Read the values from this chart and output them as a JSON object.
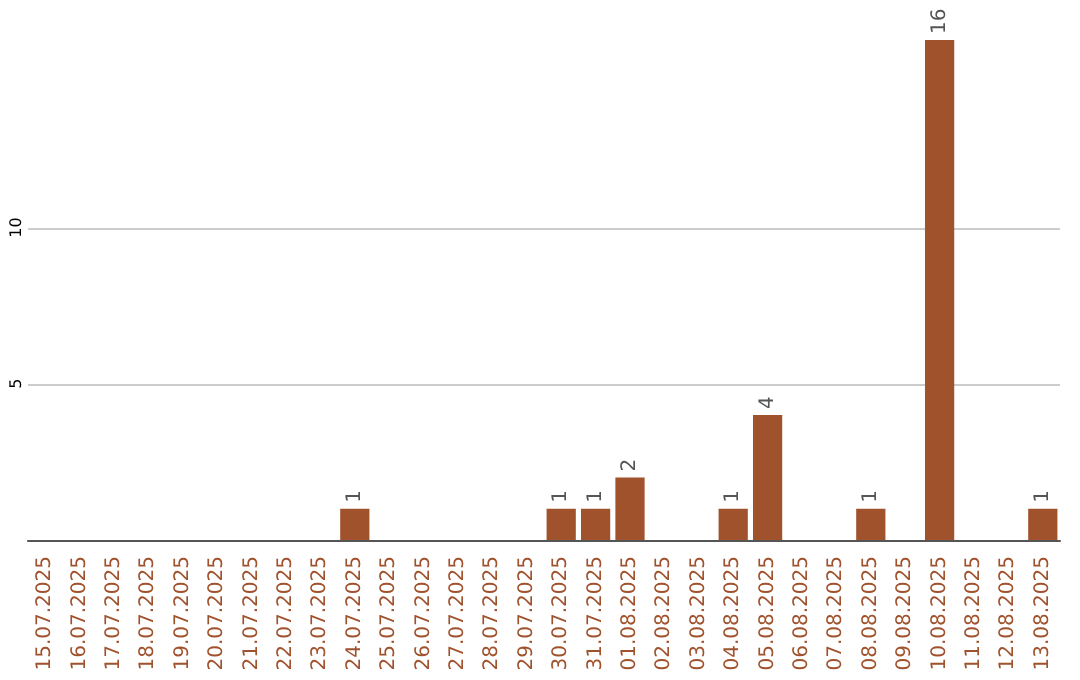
{
  "chart_data": {
    "type": "bar",
    "categories": [
      "15.07.2025",
      "16.07.2025",
      "17.07.2025",
      "18.07.2025",
      "19.07.2025",
      "20.07.2025",
      "21.07.2025",
      "22.07.2025",
      "23.07.2025",
      "24.07.2025",
      "25.07.2025",
      "26.07.2025",
      "27.07.2025",
      "28.07.2025",
      "29.07.2025",
      "30.07.2025",
      "31.07.2025",
      "01.08.2025",
      "02.08.2025",
      "03.08.2025",
      "04.08.2025",
      "05.08.2025",
      "06.08.2025",
      "07.08.2025",
      "08.08.2025",
      "09.08.2025",
      "10.08.2025",
      "11.08.2025",
      "12.08.2025",
      "13.08.2025"
    ],
    "values": [
      0,
      0,
      0,
      0,
      0,
      0,
      0,
      0,
      0,
      1,
      0,
      0,
      0,
      0,
      0,
      1,
      1,
      2,
      0,
      0,
      1,
      4,
      0,
      0,
      1,
      0,
      16,
      0,
      0,
      1
    ],
    "value_labels": [
      null,
      null,
      null,
      null,
      null,
      null,
      null,
      null,
      null,
      "1",
      null,
      null,
      null,
      null,
      null,
      "1",
      "1",
      "2",
      null,
      null,
      "1",
      "4",
      null,
      null,
      "1",
      null,
      "16",
      null,
      null,
      "1"
    ],
    "color": "#a0522d",
    "ylim": [
      0,
      16
    ],
    "yticks": [
      5,
      10
    ],
    "grid": "y"
  }
}
